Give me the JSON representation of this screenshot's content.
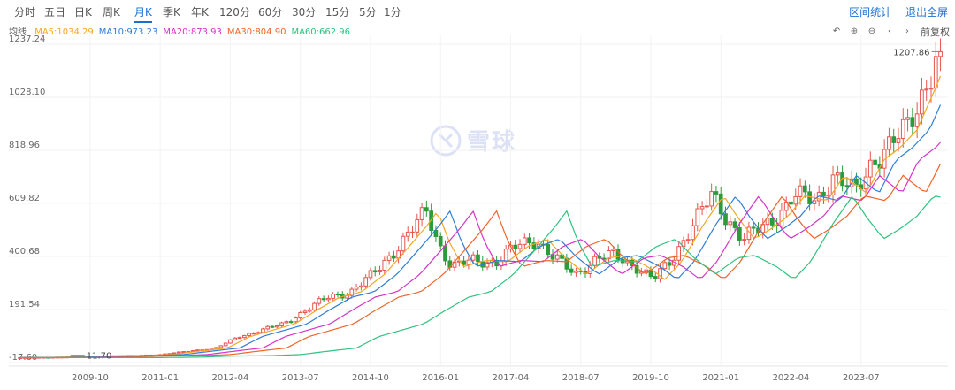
{
  "tabs": [
    "分时",
    "五日",
    "日K",
    "周K",
    "月K",
    "季K",
    "年K",
    "120分",
    "60分",
    "30分",
    "15分",
    "5分",
    "1分"
  ],
  "active_tab": "月K",
  "links": {
    "range_stats": "区间统计",
    "fullscreen": "退出全屏"
  },
  "ma_legend": {
    "label": "均线",
    "items": [
      {
        "text": "MA5:1034.29",
        "color": "#f5a623"
      },
      {
        "text": "MA10:973.23",
        "color": "#2f7ed8"
      },
      {
        "text": "MA20:873.93",
        "color": "#d633c9"
      },
      {
        "text": "MA30:804.90",
        "color": "#f0642a"
      },
      {
        "text": "MA60:662.96",
        "color": "#2ec27e"
      }
    ]
  },
  "toolbar": {
    "icons": [
      "undo-icon",
      "plus-icon",
      "minus-icon",
      "left-icon",
      "right-icon"
    ],
    "adjust_label": "前复权"
  },
  "watermark": "雪球",
  "chart_data": {
    "type": "candlestick",
    "yticks": [
      "1237.24",
      "1028.10",
      "818.96",
      "609.82",
      "400.68",
      "191.54",
      "-17.60"
    ],
    "ylim": [
      -17.6,
      1237.24
    ],
    "xticks": [
      "2009-10",
      "2011-01",
      "2012-04",
      "2013-07",
      "2014-10",
      "2016-01",
      "2017-04",
      "2018-07",
      "2019-10",
      "2021-01",
      "2022-04",
      "2023-07"
    ],
    "annotations": {
      "max_label": "1207.86",
      "min_label": "11.70"
    },
    "close_path": [
      [
        2008.5,
        2
      ],
      [
        2009.25,
        4
      ],
      [
        2009.75,
        8
      ],
      [
        2010.5,
        10
      ],
      [
        2011.0,
        14
      ],
      [
        2011.6,
        30
      ],
      [
        2012.0,
        40
      ],
      [
        2012.4,
        85
      ],
      [
        2012.8,
        110
      ],
      [
        2013.2,
        135
      ],
      [
        2013.6,
        190
      ],
      [
        2014.0,
        240
      ],
      [
        2014.4,
        262
      ],
      [
        2014.8,
        330
      ],
      [
        2015.2,
        430
      ],
      [
        2015.55,
        520
      ],
      [
        2015.75,
        580
      ],
      [
        2015.95,
        460
      ],
      [
        2016.2,
        360
      ],
      [
        2016.6,
        385
      ],
      [
        2017.0,
        380
      ],
      [
        2017.35,
        440
      ],
      [
        2017.7,
        470
      ],
      [
        2018.0,
        400
      ],
      [
        2018.4,
        330
      ],
      [
        2018.8,
        395
      ],
      [
        2019.1,
        405
      ],
      [
        2019.5,
        360
      ],
      [
        2019.8,
        310
      ],
      [
        2020.1,
        380
      ],
      [
        2020.5,
        530
      ],
      [
        2020.85,
        640
      ],
      [
        2021.1,
        555
      ],
      [
        2021.4,
        470
      ],
      [
        2021.7,
        510
      ],
      [
        2022.0,
        560
      ],
      [
        2022.3,
        640
      ],
      [
        2022.7,
        620
      ],
      [
        2023.0,
        720
      ],
      [
        2023.4,
        650
      ],
      [
        2023.7,
        780
      ],
      [
        2024.0,
        830
      ],
      [
        2024.3,
        900
      ],
      [
        2024.6,
        1050
      ],
      [
        2024.9,
        1207.86
      ]
    ],
    "ma_series": [
      {
        "name": "MA5",
        "color": "#f5a623",
        "lag": 0.2
      },
      {
        "name": "MA10",
        "color": "#2f7ed8",
        "lag": 0.42
      },
      {
        "name": "MA20",
        "color": "#d633c9",
        "lag": 0.83
      },
      {
        "name": "MA30",
        "color": "#f0642a",
        "lag": 1.25
      },
      {
        "name": "MA60",
        "color": "#2ec27e",
        "lag": 2.5
      }
    ],
    "x_range": [
      2008.3,
      2025.05
    ],
    "up_color": "#e8544f",
    "down_color": "#2a9d3a"
  }
}
